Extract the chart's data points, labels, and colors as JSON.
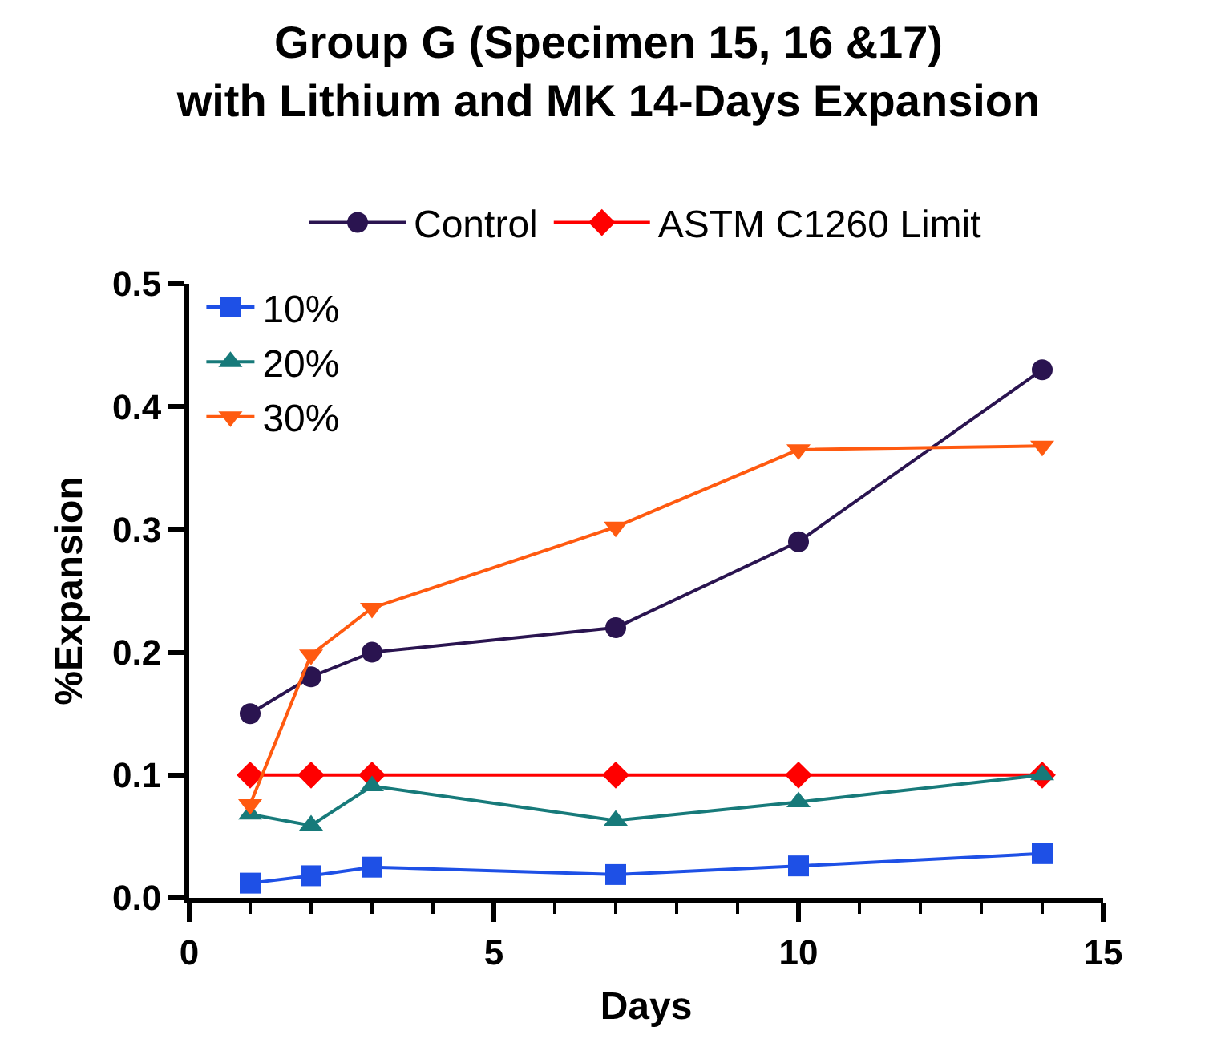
{
  "chart_data": {
    "type": "line",
    "title": "Group G (Specimen 15, 16 &17)\nwith Lithium and MK 14-Days Expansion",
    "xlabel": "Days",
    "ylabel": "%Expansion",
    "x": [
      1,
      2,
      3,
      7,
      10,
      14
    ],
    "series": [
      {
        "name": "Control",
        "color": "#2a1450",
        "marker": "circle",
        "values": [
          0.15,
          0.18,
          0.2,
          0.22,
          0.29,
          0.43
        ]
      },
      {
        "name": "ASTM C1260 Limit",
        "color": "#ff0000",
        "marker": "diamond",
        "values": [
          0.1,
          0.1,
          0.1,
          0.1,
          0.1,
          0.1
        ]
      },
      {
        "name": "10%",
        "color": "#1e50e6",
        "marker": "square",
        "values": [
          0.012,
          0.018,
          0.025,
          0.019,
          0.026,
          0.036
        ]
      },
      {
        "name": "20%",
        "color": "#177a7a",
        "marker": "triangle",
        "values": [
          0.068,
          0.059,
          0.091,
          0.063,
          0.078,
          0.1
        ]
      },
      {
        "name": "30%",
        "color": "#ff5a10",
        "marker": "triangle-down",
        "values": [
          0.076,
          0.198,
          0.236,
          0.302,
          0.365,
          0.368
        ]
      }
    ],
    "xlim": [
      0,
      15
    ],
    "xticks": [
      0,
      5,
      10,
      15
    ],
    "ylim": [
      0,
      0.5
    ],
    "yticks": [
      {
        "value": 0,
        "label": "0.0"
      },
      0.1,
      0.2,
      0.3,
      0.4,
      0.5
    ],
    "grid": false,
    "legend": "top left"
  }
}
